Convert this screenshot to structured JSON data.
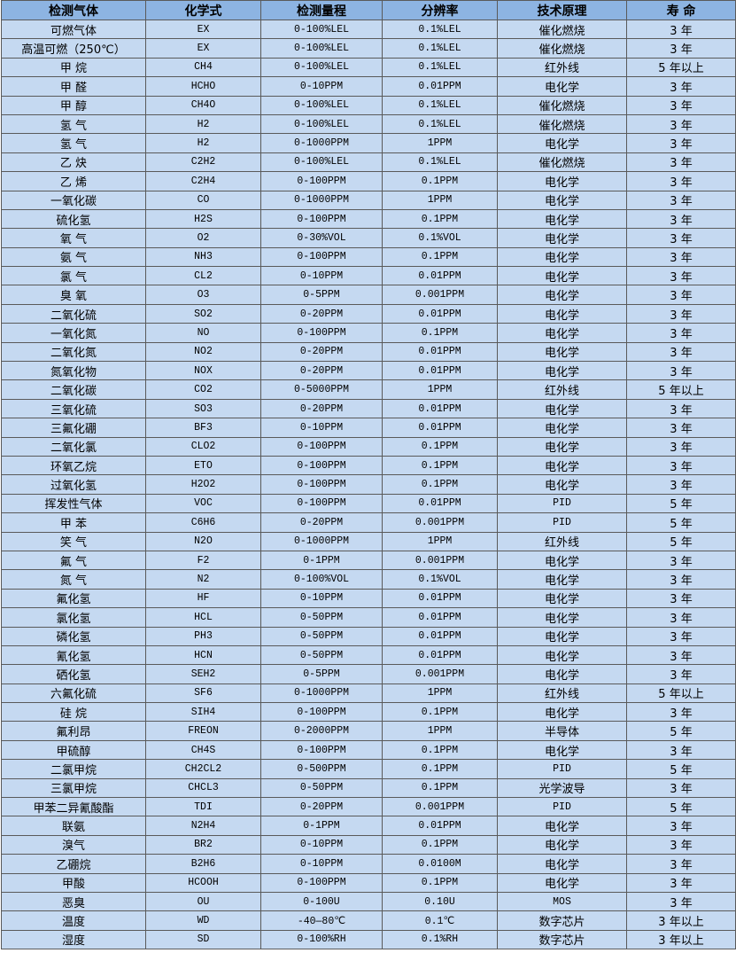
{
  "headers": [
    "检测气体",
    "化学式",
    "检测量程",
    "分辨率",
    "技术原理",
    "寿 命"
  ],
  "rows": [
    [
      "可燃气体",
      "EX",
      "0-100%LEL",
      "0.1%LEL",
      "催化燃烧",
      "3 年"
    ],
    [
      "高温可燃（250℃）",
      "EX",
      "0-100%LEL",
      "0.1%LEL",
      "催化燃烧",
      "3 年"
    ],
    [
      "甲 烷",
      "CH4",
      "0-100%LEL",
      "0.1%LEL",
      "红外线",
      "5 年以上"
    ],
    [
      "甲 醛",
      "HCHO",
      "0-10PPM",
      "0.01PPM",
      "电化学",
      "3 年"
    ],
    [
      "甲 醇",
      "CH4O",
      "0-100%LEL",
      "0.1%LEL",
      "催化燃烧",
      "3 年"
    ],
    [
      "氢 气",
      "H2",
      "0-100%LEL",
      "0.1%LEL",
      "催化燃烧",
      "3 年"
    ],
    [
      "氢 气",
      "H2",
      "0-1000PPM",
      "1PPM",
      "电化学",
      "3 年"
    ],
    [
      "乙 炔",
      "C2H2",
      "0-100%LEL",
      "0.1%LEL",
      "催化燃烧",
      "3 年"
    ],
    [
      "乙 烯",
      "C2H4",
      "0-100PPM",
      "0.1PPM",
      "电化学",
      "3 年"
    ],
    [
      "一氧化碳",
      "CO",
      "0-1000PPM",
      "1PPM",
      "电化学",
      "3 年"
    ],
    [
      "硫化氢",
      "H2S",
      "0-100PPM",
      "0.1PPM",
      "电化学",
      "3 年"
    ],
    [
      "氧 气",
      "O2",
      "0-30%VOL",
      "0.1%VOL",
      "电化学",
      "3 年"
    ],
    [
      "氨 气",
      "NH3",
      "0-100PPM",
      "0.1PPM",
      "电化学",
      "3 年"
    ],
    [
      "氯 气",
      "CL2",
      "0-10PPM",
      "0.01PPM",
      "电化学",
      "3 年"
    ],
    [
      "臭 氧",
      "O3",
      "0-5PPM",
      "0.001PPM",
      "电化学",
      "3 年"
    ],
    [
      "二氧化硫",
      "SO2",
      "0-20PPM",
      "0.01PPM",
      "电化学",
      "3 年"
    ],
    [
      "一氧化氮",
      "NO",
      "0-100PPM",
      "0.1PPM",
      "电化学",
      "3 年"
    ],
    [
      "二氧化氮",
      "NO2",
      "0-20PPM",
      "0.01PPM",
      "电化学",
      "3 年"
    ],
    [
      "氮氧化物",
      "NOX",
      "0-20PPM",
      "0.01PPM",
      "电化学",
      "3 年"
    ],
    [
      "二氧化碳",
      "CO2",
      "0-5000PPM",
      "1PPM",
      "红外线",
      "5 年以上"
    ],
    [
      "三氧化硫",
      "SO3",
      "0-20PPM",
      "0.01PPM",
      "电化学",
      "3 年"
    ],
    [
      "三氟化硼",
      "BF3",
      "0-10PPM",
      "0.01PPM",
      "电化学",
      "3 年"
    ],
    [
      "二氧化氯",
      "CLO2",
      "0-100PPM",
      "0.1PPM",
      "电化学",
      "3 年"
    ],
    [
      "环氧乙烷",
      "ETO",
      "0-100PPM",
      "0.1PPM",
      "电化学",
      "3 年"
    ],
    [
      "过氧化氢",
      "H2O2",
      "0-100PPM",
      "0.1PPM",
      "电化学",
      "3 年"
    ],
    [
      "挥发性气体",
      "VOC",
      "0-100PPM",
      "0.01PPM",
      "PID",
      "5 年"
    ],
    [
      "甲 苯",
      "C6H6",
      "0-20PPM",
      "0.001PPM",
      "PID",
      "5 年"
    ],
    [
      "笑 气",
      "N2O",
      "0-1000PPM",
      "1PPM",
      "红外线",
      "5 年"
    ],
    [
      "氟 气",
      "F2",
      "0-1PPM",
      "0.001PPM",
      "电化学",
      "3 年"
    ],
    [
      "氮 气",
      "N2",
      "0-100%VOL",
      "0.1%VOL",
      "电化学",
      "3 年"
    ],
    [
      "氟化氢",
      "HF",
      "0-10PPM",
      "0.01PPM",
      "电化学",
      "3 年"
    ],
    [
      "氯化氢",
      "HCL",
      "0-50PPM",
      "0.01PPM",
      "电化学",
      "3 年"
    ],
    [
      "磷化氢",
      "PH3",
      "0-50PPM",
      "0.01PPM",
      "电化学",
      "3 年"
    ],
    [
      "氰化氢",
      "HCN",
      "0-50PPM",
      "0.01PPM",
      "电化学",
      "3 年"
    ],
    [
      "硒化氢",
      "SEH2",
      "0-5PPM",
      "0.001PPM",
      "电化学",
      "3 年"
    ],
    [
      "六氟化硫",
      "SF6",
      "0-1000PPM",
      "1PPM",
      "红外线",
      "5 年以上"
    ],
    [
      "硅 烷",
      "SIH4",
      "0-100PPM",
      "0.1PPM",
      "电化学",
      "3 年"
    ],
    [
      "氟利昂",
      "FREON",
      "0-2000PPM",
      "1PPM",
      "半导体",
      "5 年"
    ],
    [
      "甲硫醇",
      "CH4S",
      "0-100PPM",
      "0.1PPM",
      "电化学",
      "3 年"
    ],
    [
      "二氯甲烷",
      "CH2CL2",
      "0-500PPM",
      "0.1PPM",
      "PID",
      "5 年"
    ],
    [
      "三氯甲烷",
      "CHCL3",
      "0-50PPM",
      "0.1PPM",
      "光学波导",
      "3 年"
    ],
    [
      "甲苯二异氰酸酯",
      "TDI",
      "0-20PPM",
      "0.001PPM",
      "PID",
      "5 年"
    ],
    [
      "联氨",
      "N2H4",
      "0-1PPM",
      "0.01PPM",
      "电化学",
      "3 年"
    ],
    [
      "溴气",
      "BR2",
      "0-10PPM",
      "0.1PPM",
      "电化学",
      "3 年"
    ],
    [
      "乙硼烷",
      "B2H6",
      "0-10PPM",
      "0.0100M",
      "电化学",
      "3 年"
    ],
    [
      "甲酸",
      "HCOOH",
      "0-100PPM",
      "0.1PPM",
      "电化学",
      "3 年"
    ],
    [
      "恶臭",
      "OU",
      "0-100U",
      "0.10U",
      "MOS",
      "3 年"
    ],
    [
      "温度",
      "WD",
      "-40—80℃",
      "0.1℃",
      "数字芯片",
      "3 年以上"
    ],
    [
      "湿度",
      "SD",
      "0-100%RH",
      "0.1%RH",
      "数字芯片",
      "3 年以上"
    ]
  ]
}
